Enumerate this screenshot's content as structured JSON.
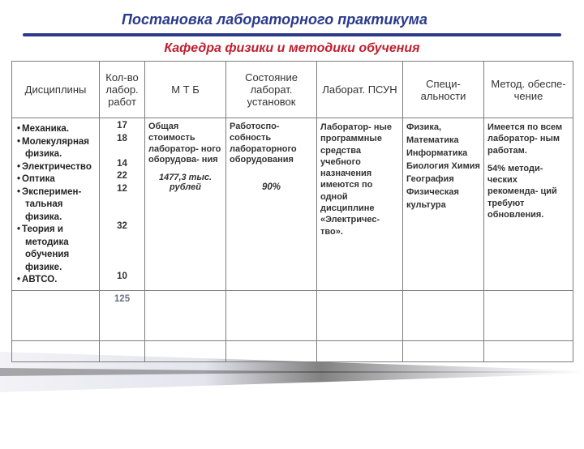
{
  "title": "Постановка лабораторного практикума",
  "subtitle": "Кафедра физики и методики обучения",
  "headers": {
    "disciplines": "Дисциплины",
    "count": "Кол-во лабор. работ",
    "mtb": "М Т Б",
    "state": "Состояние лаборат. установок",
    "lab": "Лаборат. ПСУН",
    "spec": "Специ-\nальности",
    "met": "Метод. обеспе-\nчение"
  },
  "disciplines": [
    "Механика.",
    "Молекулярная",
    "  физика.",
    "Электричество",
    "Оптика",
    "Эксперимен-",
    "  тальная",
    "  физика.",
    "Теория и",
    "  методика",
    "  обучения",
    "  физике.",
    "АВТСО."
  ],
  "discipline_flags": {
    "bullets": [
      true,
      true,
      false,
      true,
      true,
      true,
      false,
      false,
      true,
      false,
      false,
      false,
      true
    ]
  },
  "counts": [
    "17",
    "18",
    "",
    "14",
    "22",
    "12",
    "",
    "",
    "32",
    "",
    "",
    "",
    "10"
  ],
  "count_total": "125",
  "mtb": {
    "text": "Общая стоимость лаборатор-\nного оборудова-\nния",
    "value": "1477,3 тыс. рублей"
  },
  "state": {
    "text": "Работоспо-\nсобность лабораторного оборудования",
    "percent": "90%"
  },
  "lab": "Лаборатор-\nные программные средства учебного назначения имеются\nпо одной дисциплине «Электричес-\nтво».",
  "specialties": "Физика,\nМатематика\nИнформатика\nБиология\nХимия\nГеография\nФизическая культура",
  "method": {
    "p1": "Имеется\nпо всем лаборатор-\nным работам.",
    "p2": "54% методи-\nческих рекоменда-\nций требуют обновления."
  },
  "colors": {
    "title": "#2b3a8b",
    "subtitle": "#bf1f2e",
    "rule": "#2b3a8b",
    "border": "#7d7d7d",
    "wedge_dark": "#1a1a1a",
    "wedge_light": "#e8e8f0"
  }
}
